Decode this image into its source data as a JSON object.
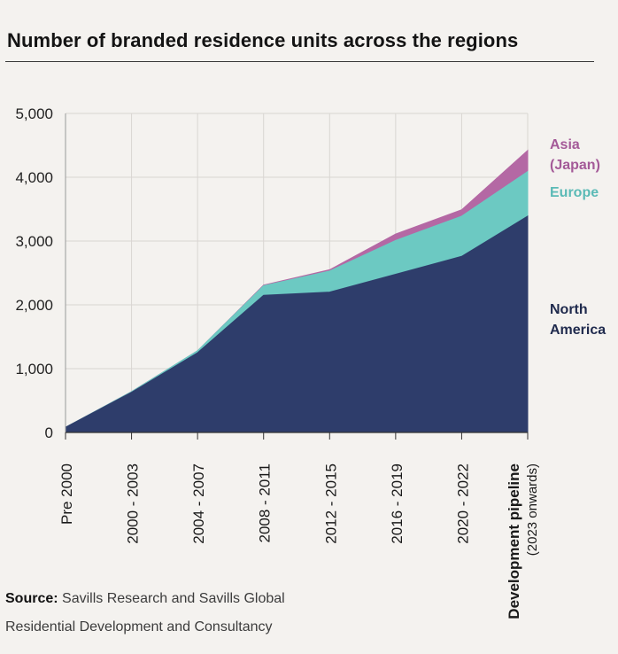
{
  "title": "Number of branded residence units across the regions",
  "source": {
    "label": "Source:",
    "line1": "Savills Research and Savills Global",
    "line2": "Residential Development and Consultancy"
  },
  "colors": {
    "north_america": "#2e3d6b",
    "europe": "#6cc9c2",
    "asia": "#b468a4",
    "europe_label": "#5bbab6",
    "asia_label": "#a45a98",
    "na_label": "#1f2a4d"
  },
  "chart_data": {
    "type": "area",
    "stacked": true,
    "categories": [
      "Pre 2000",
      "2000 - 2003",
      "2004 - 2007",
      "2008 - 2011",
      "2012 - 2015",
      "2016 - 2019",
      "2020 - 2022",
      "Development pipeline"
    ],
    "category_sublabels": [
      "",
      "",
      "",
      "",
      "",
      "",
      "",
      "(2023 onwards)"
    ],
    "series": [
      {
        "name": "North America",
        "values": [
          80,
          630,
          1250,
          2150,
          2200,
          2480,
          2760,
          3390
        ]
      },
      {
        "name": "Europe",
        "values": [
          0,
          10,
          30,
          150,
          330,
          530,
          630,
          700
        ]
      },
      {
        "name": "Asia (Japan)",
        "values": [
          0,
          0,
          0,
          10,
          20,
          100,
          100,
          330
        ]
      }
    ],
    "series_labels": [
      {
        "lines": [
          "North",
          "America"
        ]
      },
      {
        "lines": [
          "Europe"
        ]
      },
      {
        "lines": [
          "Asia",
          "(Japan)"
        ]
      }
    ],
    "ylim": [
      0,
      5000
    ],
    "yticks": [
      0,
      1000,
      2000,
      3000,
      4000,
      5000
    ],
    "ytick_labels": [
      "0",
      "1,000",
      "2,000",
      "3,000",
      "4,000",
      "5,000"
    ],
    "grid": true
  }
}
